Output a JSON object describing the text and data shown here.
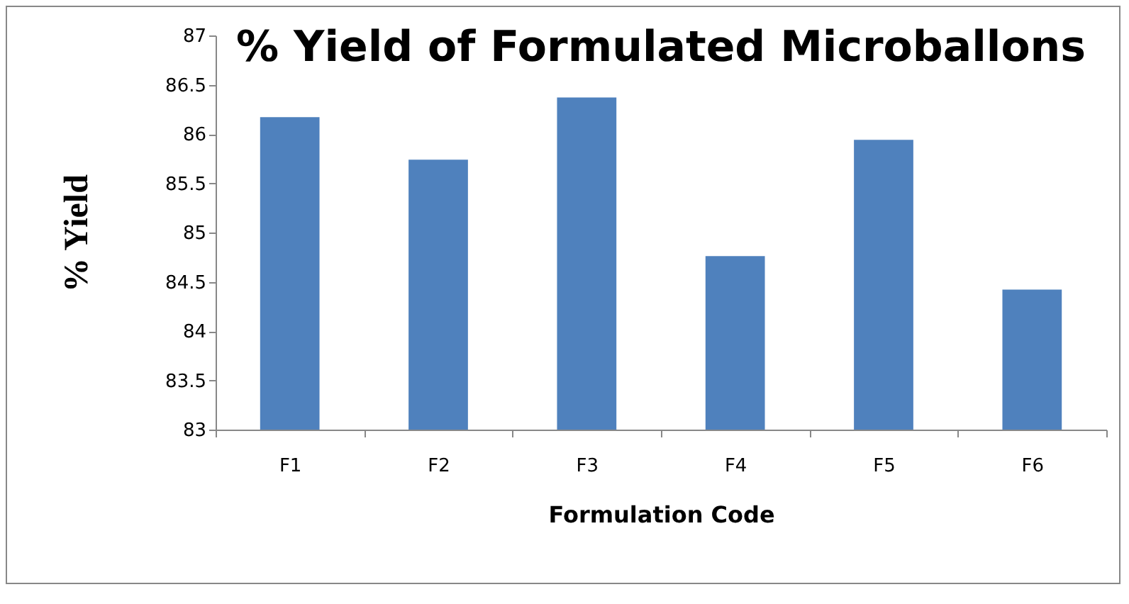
{
  "chart_data": {
    "type": "bar",
    "title": "% Yield of Formulated Microballons",
    "xlabel": "Formulation Code",
    "ylabel": "% Yield",
    "categories": [
      "F1",
      "F2",
      "F3",
      "F4",
      "F5",
      "F6"
    ],
    "values": [
      86.17,
      85.74,
      86.37,
      84.76,
      85.94,
      84.42
    ],
    "color": "#4f81bd",
    "ylim": [
      83,
      87
    ],
    "yticks": [
      83,
      83.5,
      84,
      84.5,
      85,
      85.5,
      86,
      86.5,
      87
    ],
    "grid": false,
    "legend": false
  }
}
